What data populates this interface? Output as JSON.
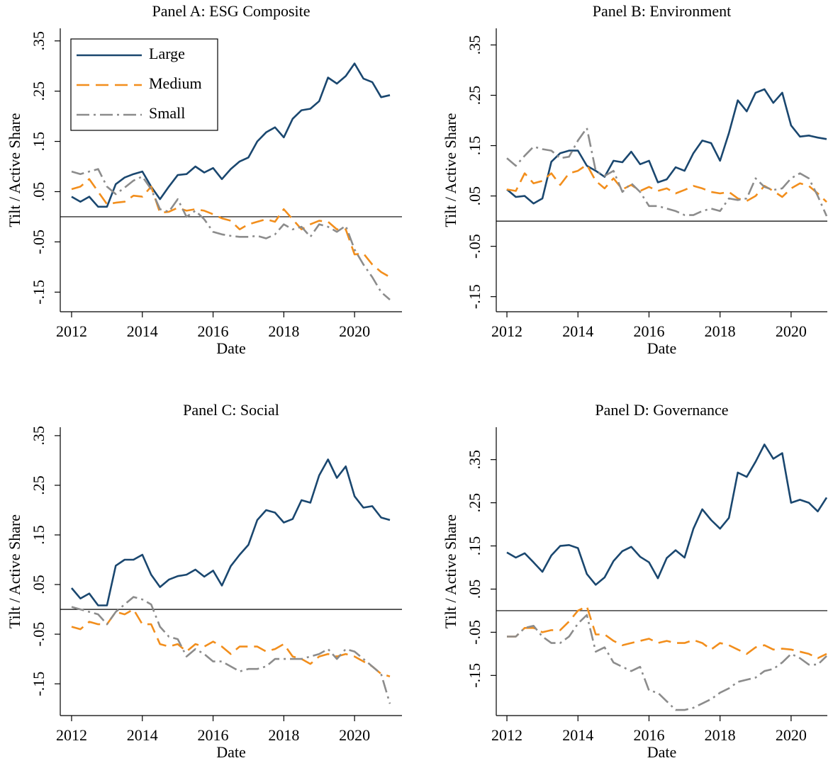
{
  "chart_data": [
    {
      "type": "line",
      "title": "Panel A: ESG Composite",
      "xlabel": "Date",
      "ylabel": "Tilt / Active Share",
      "x": [
        2012,
        2012.25,
        2012.5,
        2012.75,
        2013,
        2013.25,
        2013.5,
        2013.75,
        2014,
        2014.25,
        2014.5,
        2014.75,
        2015,
        2015.25,
        2015.5,
        2015.75,
        2016,
        2016.25,
        2016.5,
        2016.75,
        2017,
        2017.25,
        2017.5,
        2017.75,
        2018,
        2018.25,
        2018.5,
        2018.75,
        2019,
        2019.25,
        2019.5,
        2019.75,
        2020,
        2020.25,
        2020.5,
        2020.75,
        2021
      ],
      "xlim": [
        2011.68,
        2021.34
      ],
      "xticks": [
        2012,
        2014,
        2016,
        2018,
        2020
      ],
      "ylim": [
        -0.189,
        0.375
      ],
      "yticks": [
        {
          "value": -0.15,
          "label": "-.15"
        },
        {
          "value": -0.05,
          "label": "-.05"
        },
        {
          "value": 0.05,
          "label": ".05"
        },
        {
          "value": 0.15,
          "label": ".15"
        },
        {
          "value": 0.25,
          "label": ".25"
        },
        {
          "value": 0.35,
          "label": ".35"
        }
      ],
      "hline": 0,
      "legend": "upper left",
      "series": [
        {
          "name": "Large",
          "color": "#1a476f",
          "linestyle": "solid",
          "values": [
            0.04,
            0.03,
            0.04,
            0.02,
            0.02,
            0.065,
            0.078,
            0.085,
            0.09,
            0.06,
            0.035,
            0.06,
            0.083,
            0.085,
            0.1,
            0.088,
            0.097,
            0.075,
            0.095,
            0.11,
            0.118,
            0.15,
            0.168,
            0.178,
            0.158,
            0.195,
            0.212,
            0.215,
            0.23,
            0.277,
            0.265,
            0.28,
            0.305,
            0.275,
            0.268,
            0.238,
            0.242
          ]
        },
        {
          "name": "Medium",
          "color": "#f28e1c",
          "linestyle": "dashed",
          "values": [
            0.055,
            0.06,
            0.075,
            0.05,
            0.025,
            0.028,
            0.03,
            0.042,
            0.04,
            0.06,
            0.008,
            0.01,
            0.018,
            0.012,
            0.015,
            0.012,
            0.005,
            -0.003,
            -0.008,
            -0.025,
            -0.015,
            -0.01,
            -0.005,
            -0.01,
            0.015,
            -0.005,
            -0.025,
            -0.015,
            -0.008,
            -0.01,
            -0.025,
            -0.025,
            -0.075,
            -0.073,
            -0.095,
            -0.11,
            -0.12
          ]
        },
        {
          "name": "Small",
          "color": "#8c8c8c",
          "linestyle": "dashdot",
          "values": [
            0.09,
            0.085,
            0.09,
            0.095,
            0.06,
            0.045,
            0.058,
            0.072,
            0.08,
            0.055,
            0.015,
            0.01,
            0.035,
            0.0,
            0.012,
            -0.005,
            -0.03,
            -0.035,
            -0.038,
            -0.04,
            -0.04,
            -0.038,
            -0.043,
            -0.035,
            -0.015,
            -0.025,
            -0.02,
            -0.04,
            -0.015,
            -0.02,
            -0.03,
            -0.018,
            -0.065,
            -0.095,
            -0.12,
            -0.15,
            -0.165
          ]
        }
      ]
    },
    {
      "type": "line",
      "title": "Panel B: Environment",
      "xlabel": "Date",
      "ylabel": "Tilt / Active Share",
      "x": [
        2012,
        2012.25,
        2012.5,
        2012.75,
        2013,
        2013.25,
        2013.5,
        2013.75,
        2014,
        2014.25,
        2014.5,
        2014.75,
        2015,
        2015.25,
        2015.5,
        2015.75,
        2016,
        2016.25,
        2016.5,
        2016.75,
        2017,
        2017.25,
        2017.5,
        2017.75,
        2018,
        2018.25,
        2018.5,
        2018.75,
        2019,
        2019.25,
        2019.5,
        2019.75,
        2020,
        2020.25,
        2020.5,
        2020.75,
        2021
      ],
      "xlim": [
        2011.7,
        2021.02
      ],
      "xticks": [
        2012,
        2014,
        2016,
        2018,
        2020
      ],
      "ylim": [
        -0.18,
        0.383
      ],
      "yticks": [
        {
          "value": -0.15,
          "label": "-.15"
        },
        {
          "value": -0.05,
          "label": "-.05"
        },
        {
          "value": 0.05,
          "label": ".05"
        },
        {
          "value": 0.15,
          "label": ".15"
        },
        {
          "value": 0.25,
          "label": ".25"
        },
        {
          "value": 0.35,
          "label": ".35"
        }
      ],
      "hline": 0,
      "series": [
        {
          "color": "#1a476f",
          "linestyle": "solid",
          "values": [
            0.063,
            0.048,
            0.05,
            0.035,
            0.045,
            0.118,
            0.135,
            0.14,
            0.14,
            0.11,
            0.1,
            0.088,
            0.12,
            0.117,
            0.138,
            0.113,
            0.12,
            0.077,
            0.083,
            0.107,
            0.1,
            0.135,
            0.16,
            0.155,
            0.12,
            0.175,
            0.24,
            0.218,
            0.255,
            0.262,
            0.235,
            0.255,
            0.19,
            0.168,
            0.17,
            0.166,
            0.163
          ]
        },
        {
          "color": "#f28e1c",
          "linestyle": "dashed",
          "values": [
            0.063,
            0.06,
            0.095,
            0.075,
            0.08,
            0.095,
            0.072,
            0.095,
            0.1,
            0.112,
            0.08,
            0.065,
            0.085,
            0.063,
            0.072,
            0.06,
            0.068,
            0.06,
            0.065,
            0.055,
            0.062,
            0.07,
            0.065,
            0.058,
            0.055,
            0.058,
            0.045,
            0.04,
            0.05,
            0.07,
            0.06,
            0.048,
            0.065,
            0.075,
            0.07,
            0.055,
            0.038
          ]
        },
        {
          "color": "#8c8c8c",
          "linestyle": "dashdot",
          "values": [
            0.125,
            0.11,
            0.13,
            0.148,
            0.143,
            0.14,
            0.125,
            0.128,
            0.16,
            0.185,
            0.1,
            0.09,
            0.1,
            0.058,
            0.075,
            0.058,
            0.03,
            0.03,
            0.025,
            0.02,
            0.012,
            0.012,
            0.02,
            0.025,
            0.02,
            0.045,
            0.042,
            0.045,
            0.085,
            0.068,
            0.062,
            0.065,
            0.085,
            0.095,
            0.085,
            0.05,
            0.01
          ]
        }
      ]
    },
    {
      "type": "line",
      "title": "Panel C: Social",
      "xlabel": "Date",
      "ylabel": "Tilt / Active Share",
      "x": [
        2012,
        2012.25,
        2012.5,
        2012.75,
        2013,
        2013.25,
        2013.5,
        2013.75,
        2014,
        2014.25,
        2014.5,
        2014.75,
        2015,
        2015.25,
        2015.5,
        2015.75,
        2016,
        2016.25,
        2016.5,
        2016.75,
        2017,
        2017.25,
        2017.5,
        2017.75,
        2018,
        2018.25,
        2018.5,
        2018.75,
        2019,
        2019.25,
        2019.5,
        2019.75,
        2020,
        2020.25,
        2020.5,
        2020.75,
        2021
      ],
      "xlim": [
        2011.68,
        2021.34
      ],
      "xticks": [
        2012,
        2014,
        2016,
        2018,
        2020
      ],
      "ylim": [
        -0.214,
        0.367
      ],
      "yticks": [
        {
          "value": -0.15,
          "label": "-.15"
        },
        {
          "value": -0.05,
          "label": "-.05"
        },
        {
          "value": 0.05,
          "label": ".05"
        },
        {
          "value": 0.15,
          "label": ".15"
        },
        {
          "value": 0.25,
          "label": ".25"
        },
        {
          "value": 0.35,
          "label": ".35"
        }
      ],
      "hline": 0,
      "series": [
        {
          "color": "#1a476f",
          "linestyle": "solid",
          "values": [
            0.043,
            0.022,
            0.032,
            0.008,
            0.008,
            0.088,
            0.1,
            0.1,
            0.11,
            0.07,
            0.045,
            0.06,
            0.067,
            0.07,
            0.08,
            0.066,
            0.078,
            0.048,
            0.087,
            0.11,
            0.13,
            0.18,
            0.2,
            0.195,
            0.175,
            0.182,
            0.22,
            0.215,
            0.27,
            0.302,
            0.265,
            0.288,
            0.228,
            0.205,
            0.208,
            0.185,
            0.18
          ]
        },
        {
          "color": "#f28e1c",
          "linestyle": "dashed",
          "values": [
            -0.035,
            -0.04,
            -0.025,
            -0.03,
            -0.03,
            -0.005,
            -0.01,
            0,
            -0.03,
            -0.03,
            -0.07,
            -0.075,
            -0.07,
            -0.085,
            -0.07,
            -0.075,
            -0.065,
            -0.075,
            -0.09,
            -0.075,
            -0.075,
            -0.075,
            -0.085,
            -0.08,
            -0.07,
            -0.095,
            -0.1,
            -0.11,
            -0.095,
            -0.09,
            -0.095,
            -0.09,
            -0.095,
            -0.105,
            -0.115,
            -0.13,
            -0.135
          ]
        },
        {
          "color": "#8c8c8c",
          "linestyle": "dashdot",
          "values": [
            0.005,
            0.0,
            -0.005,
            -0.01,
            -0.03,
            -0.005,
            0.01,
            0.025,
            0.02,
            0.01,
            -0.035,
            -0.055,
            -0.06,
            -0.095,
            -0.08,
            -0.09,
            -0.105,
            -0.105,
            -0.115,
            -0.125,
            -0.12,
            -0.12,
            -0.115,
            -0.1,
            -0.1,
            -0.1,
            -0.1,
            -0.095,
            -0.09,
            -0.08,
            -0.1,
            -0.08,
            -0.085,
            -0.1,
            -0.115,
            -0.13,
            -0.19
          ]
        }
      ]
    },
    {
      "type": "line",
      "title": "Panel D: Governance",
      "xlabel": "Date",
      "ylabel": "Tilt / Active Share",
      "x": [
        2012,
        2012.25,
        2012.5,
        2012.75,
        2013,
        2013.25,
        2013.5,
        2013.75,
        2014,
        2014.25,
        2014.5,
        2014.75,
        2015,
        2015.25,
        2015.5,
        2015.75,
        2016,
        2016.25,
        2016.5,
        2016.75,
        2017,
        2017.25,
        2017.5,
        2017.75,
        2018,
        2018.25,
        2018.5,
        2018.75,
        2019,
        2019.25,
        2019.5,
        2019.75,
        2020,
        2020.25,
        2020.5,
        2020.75,
        2021
      ],
      "xlim": [
        2011.7,
        2021.02
      ],
      "xticks": [
        2012,
        2014,
        2016,
        2018,
        2020
      ],
      "ylim": [
        -0.243,
        0.425
      ],
      "yticks": [
        {
          "value": -0.15,
          "label": "-.15"
        },
        {
          "value": -0.05,
          "label": "-.05"
        },
        {
          "value": 0.05,
          "label": ".05"
        },
        {
          "value": 0.15,
          "label": ".15"
        },
        {
          "value": 0.25,
          "label": ".25"
        },
        {
          "value": 0.35,
          "label": ".35"
        }
      ],
      "hline": 0,
      "series": [
        {
          "color": "#1a476f",
          "linestyle": "solid",
          "values": [
            0.135,
            0.123,
            0.133,
            0.112,
            0.09,
            0.128,
            0.15,
            0.152,
            0.145,
            0.085,
            0.06,
            0.077,
            0.115,
            0.138,
            0.148,
            0.125,
            0.112,
            0.075,
            0.122,
            0.14,
            0.123,
            0.19,
            0.235,
            0.21,
            0.19,
            0.215,
            0.32,
            0.31,
            0.345,
            0.385,
            0.352,
            0.365,
            0.25,
            0.257,
            0.25,
            0.23,
            0.262
          ]
        },
        {
          "color": "#f28e1c",
          "linestyle": "dashed",
          "values": [
            -0.06,
            -0.06,
            -0.04,
            -0.04,
            -0.05,
            -0.045,
            -0.045,
            -0.025,
            0.0,
            0.01,
            -0.055,
            -0.055,
            -0.07,
            -0.08,
            -0.075,
            -0.07,
            -0.065,
            -0.075,
            -0.07,
            -0.075,
            -0.075,
            -0.068,
            -0.075,
            -0.09,
            -0.075,
            -0.08,
            -0.09,
            -0.1,
            -0.085,
            -0.08,
            -0.09,
            -0.088,
            -0.09,
            -0.095,
            -0.1,
            -0.11,
            -0.1
          ]
        },
        {
          "color": "#8c8c8c",
          "linestyle": "dashdot",
          "values": [
            -0.06,
            -0.06,
            -0.04,
            -0.035,
            -0.06,
            -0.075,
            -0.075,
            -0.06,
            -0.03,
            -0.01,
            -0.095,
            -0.085,
            -0.12,
            -0.13,
            -0.14,
            -0.13,
            -0.185,
            -0.19,
            -0.21,
            -0.23,
            -0.23,
            -0.225,
            -0.215,
            -0.205,
            -0.19,
            -0.18,
            -0.165,
            -0.16,
            -0.155,
            -0.14,
            -0.135,
            -0.12,
            -0.1,
            -0.11,
            -0.125,
            -0.125,
            -0.105
          ]
        }
      ]
    }
  ]
}
